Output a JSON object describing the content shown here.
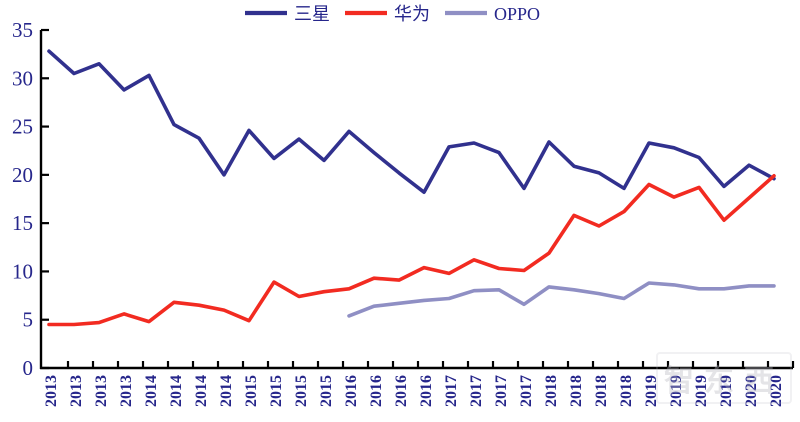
{
  "watermark": "智东西",
  "colors": {
    "samsung": "#31318E",
    "huawei": "#F22B21",
    "oppo": "#8F8FC4",
    "axis": "#000000",
    "tick_label": "#26268B",
    "watermark": "#b9b9c2",
    "background": "#ffffff"
  },
  "chart_data": {
    "type": "line",
    "title": "",
    "xlabel": "",
    "ylabel": "",
    "ylim": [
      0,
      35
    ],
    "y_ticks": [
      0,
      5,
      10,
      15,
      20,
      25,
      30,
      35
    ],
    "grid": false,
    "legend_position": "top-center",
    "x_labels": [
      "2013",
      "2013",
      "2013",
      "2013",
      "2014",
      "2014",
      "2014",
      "2014",
      "2015",
      "2015",
      "2015",
      "2015",
      "2016",
      "2016",
      "2016",
      "2016",
      "2017",
      "2017",
      "2017",
      "2017",
      "2018",
      "2018",
      "2018",
      "2018",
      "2019",
      "2019",
      "2019",
      "2019",
      "2020",
      "2020"
    ],
    "series": [
      {
        "name": "三星",
        "key": "samsung",
        "start_index": 0,
        "values": [
          32.8,
          30.5,
          31.5,
          28.8,
          30.3,
          25.2,
          23.8,
          20.0,
          24.6,
          21.7,
          23.7,
          21.5,
          24.5,
          22.3,
          20.2,
          18.2,
          22.9,
          23.3,
          22.3,
          18.6,
          23.4,
          20.9,
          20.2,
          18.6,
          23.3,
          22.8,
          21.8,
          18.8,
          21.0,
          19.6
        ]
      },
      {
        "name": "华为",
        "key": "huawei",
        "start_index": 0,
        "values": [
          4.5,
          4.5,
          4.7,
          5.6,
          4.8,
          6.8,
          6.5,
          6.0,
          4.9,
          8.9,
          7.4,
          7.9,
          8.2,
          9.3,
          9.1,
          10.4,
          9.8,
          11.2,
          10.3,
          10.1,
          11.9,
          15.8,
          14.7,
          16.2,
          19.0,
          17.7,
          18.7,
          15.3,
          17.6,
          19.9
        ]
      },
      {
        "name": "OPPO",
        "key": "oppo",
        "start_index": 12,
        "values": [
          5.4,
          6.4,
          6.7,
          7.0,
          7.2,
          8.0,
          8.1,
          6.6,
          8.4,
          8.1,
          7.7,
          7.2,
          8.8,
          8.6,
          8.2,
          8.2,
          8.5,
          8.5
        ]
      }
    ]
  }
}
